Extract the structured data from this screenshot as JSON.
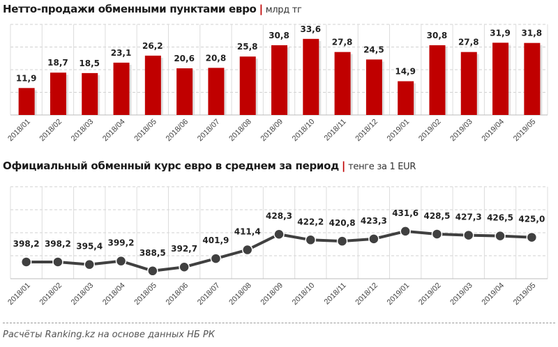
{
  "chart_data": [
    {
      "type": "bar",
      "title": "Нетто-продажи обменными пунктами евро",
      "unit": "млрд тг",
      "categories": [
        "2018/01",
        "2018/02",
        "2018/03",
        "2018/04",
        "2018/05",
        "2018/06",
        "2018/07",
        "2018/08",
        "2018/09",
        "2018/10",
        "2018/11",
        "2018/12",
        "2019/01",
        "2019/02",
        "2019/03",
        "2019/04",
        "2019/05"
      ],
      "values": [
        11.9,
        18.7,
        18.5,
        23.1,
        26.2,
        20.6,
        20.8,
        25.8,
        30.8,
        33.6,
        27.8,
        24.5,
        14.9,
        30.8,
        27.8,
        31.9,
        31.8
      ],
      "labels": [
        "11,9",
        "18,7",
        "18,5",
        "23,1",
        "26,2",
        "20,6",
        "20,8",
        "25,8",
        "30,8",
        "33,6",
        "27,8",
        "24,5",
        "14,9",
        "30,8",
        "27,8",
        "31,9",
        "31,8"
      ],
      "ylim": [
        0,
        40
      ],
      "grid": true,
      "color": "#c00000"
    },
    {
      "type": "line",
      "title": "Официальный обменный курс евро в среднем за период",
      "unit": "тенге за 1 EUR",
      "categories": [
        "2018/01",
        "2018/02",
        "2018/03",
        "2018/04",
        "2018/05",
        "2018/06",
        "2018/07",
        "2018/08",
        "2018/09",
        "2018/10",
        "2018/11",
        "2018/12",
        "2019/01",
        "2019/02",
        "2019/03",
        "2019/04",
        "2019/05"
      ],
      "values": [
        398.2,
        398.2,
        395.4,
        399.2,
        388.5,
        392.7,
        401.9,
        411.4,
        428.3,
        422.2,
        420.8,
        423.3,
        431.6,
        428.5,
        427.3,
        426.5,
        425.0
      ],
      "labels": [
        "398,2",
        "398,2",
        "395,4",
        "399,2",
        "388,5",
        "392,7",
        "401,9",
        "411,4",
        "428,3",
        "422,2",
        "420,8",
        "423,3",
        "431,6",
        "428,5",
        "427,3",
        "426,5",
        "425,0"
      ],
      "ylim": [
        380,
        480
      ],
      "grid": true,
      "color": "#404040"
    }
  ],
  "footer": "Расчёты Ranking.kz на основе данных НБ РК",
  "separator": "|"
}
